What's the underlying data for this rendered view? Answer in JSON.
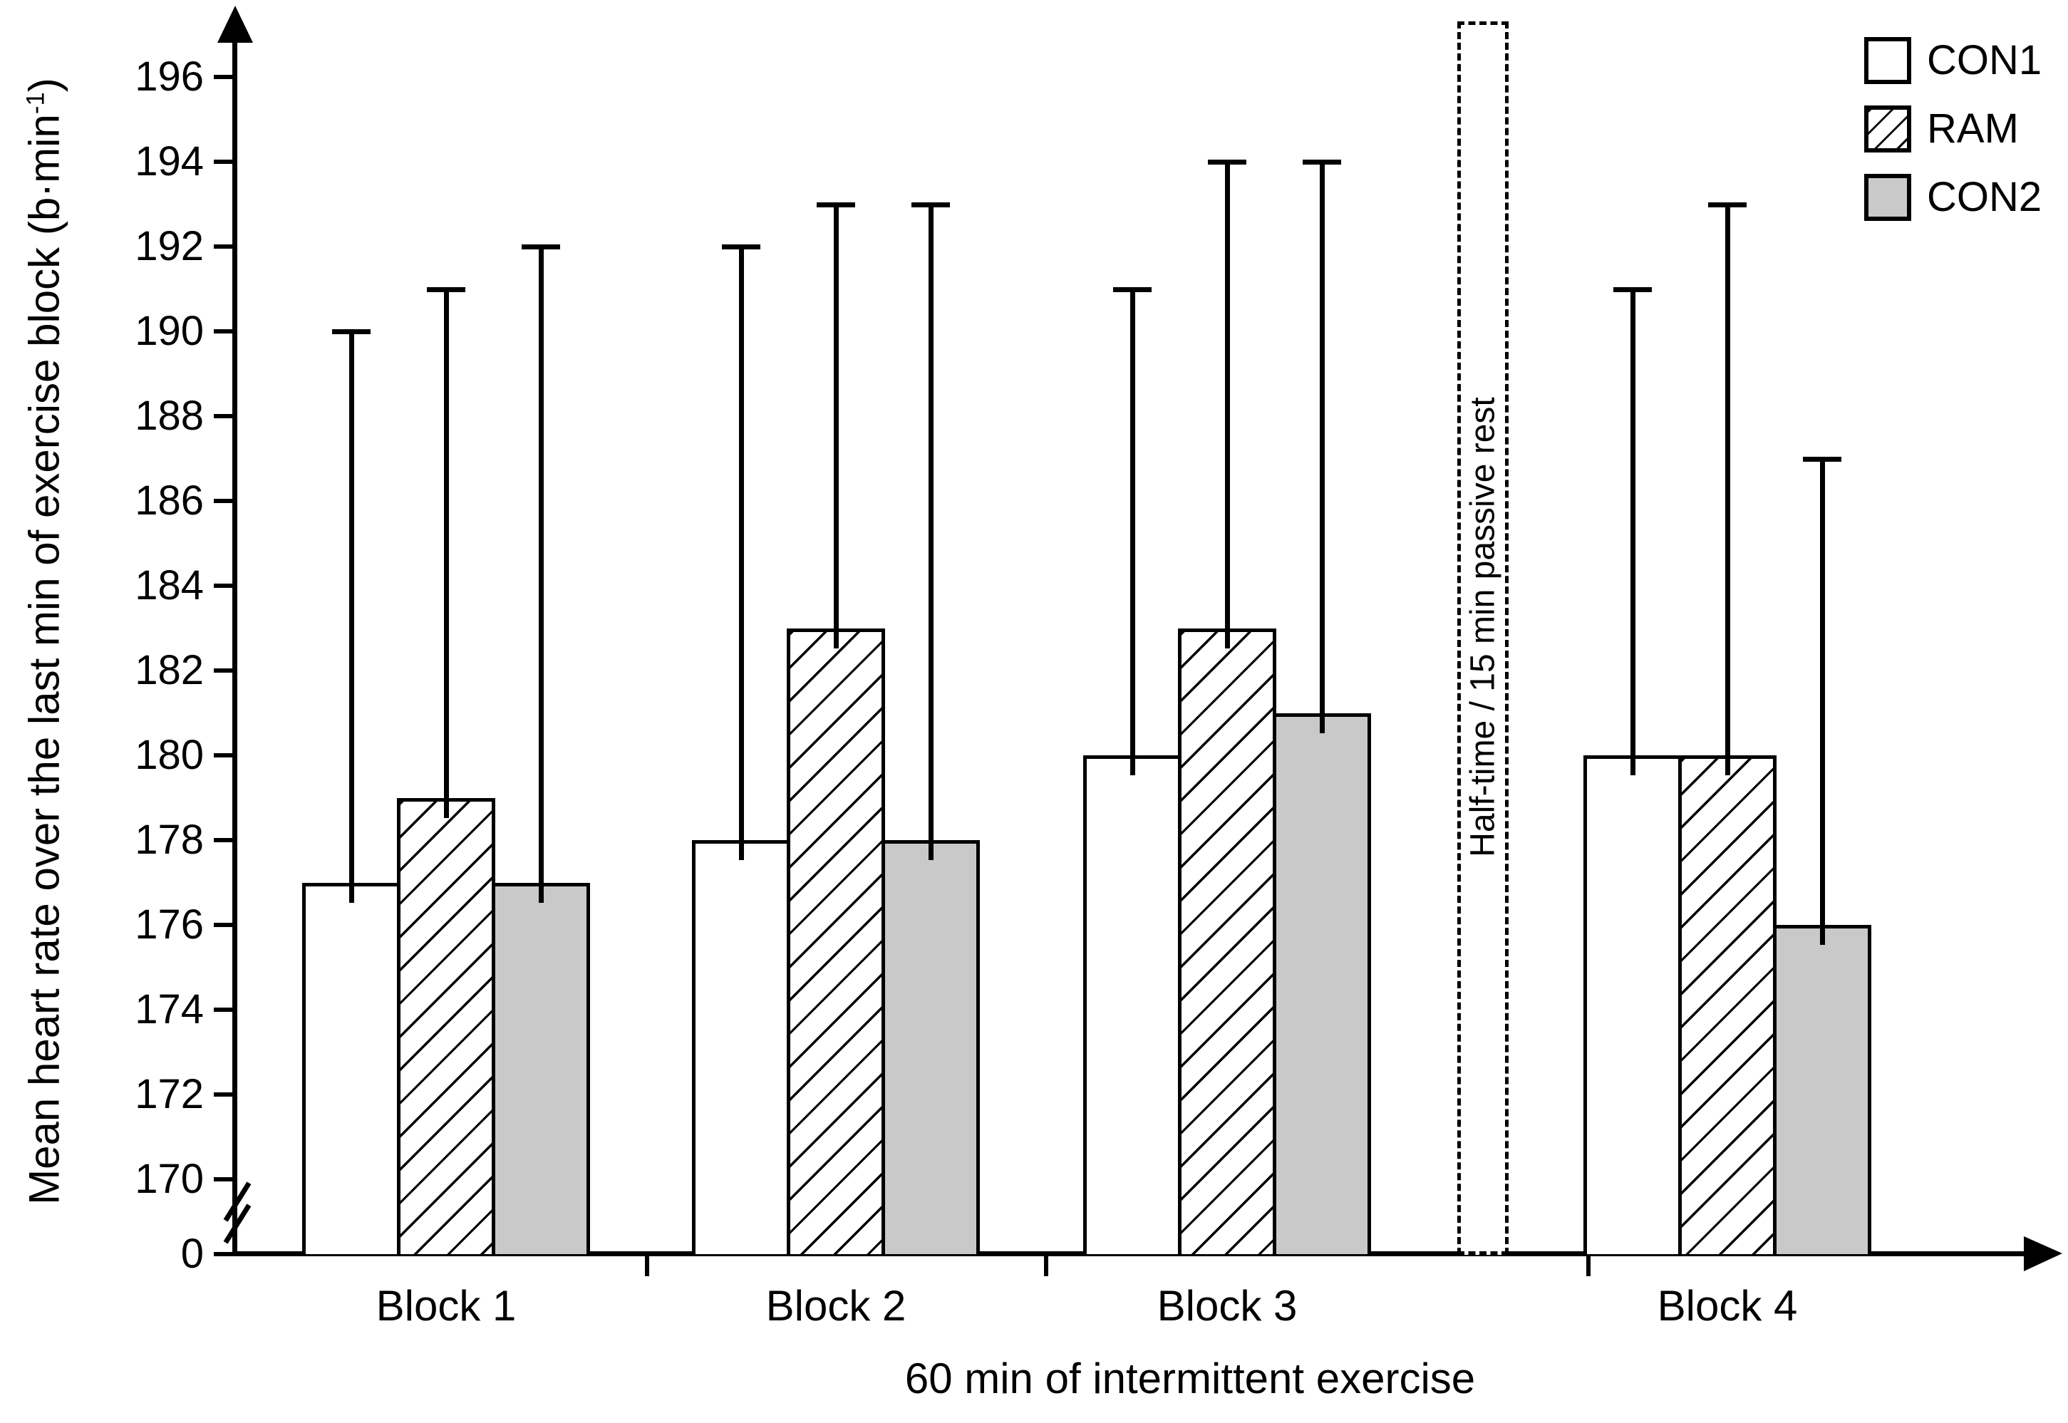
{
  "chart_data": {
    "type": "bar",
    "categories": [
      "Block 1",
      "Block 2",
      "Block 3",
      "Block 4"
    ],
    "series": [
      {
        "name": "CON1",
        "fill": "white",
        "values": [
          177,
          178,
          180,
          180
        ],
        "error_top": [
          190,
          192,
          191,
          191
        ]
      },
      {
        "name": "RAM",
        "fill": "hatch",
        "values": [
          179,
          183,
          183,
          180
        ],
        "error_top": [
          191,
          193,
          194,
          193
        ]
      },
      {
        "name": "CON2",
        "fill": "gray",
        "values": [
          177,
          178,
          181,
          176
        ],
        "error_top": [
          192,
          193,
          194,
          187
        ]
      }
    ],
    "xlabel": "60 min of intermittent exercise",
    "ylabel": "Mean heart rate over the last min of exercise block (b·min⁻¹)",
    "y_ticks": [
      170,
      172,
      174,
      176,
      178,
      180,
      182,
      184,
      186,
      188,
      190,
      192,
      194,
      196
    ],
    "y_axis_zero_label": "0",
    "y_axis_break": true,
    "ylim_displayed": [
      170,
      197
    ],
    "grid": false,
    "legend_position": "top-right",
    "annotation": "Half-time / 15 min passive rest"
  },
  "legend": {
    "items": [
      {
        "label": "CON1"
      },
      {
        "label": "RAM"
      },
      {
        "label": "CON2"
      }
    ]
  },
  "y_axis": {
    "title_main": "Mean heart rate over the last min of exercise block (b·min",
    "title_sup": "-1",
    "title_close": ")",
    "zero_label": "0"
  },
  "x_axis": {
    "title": "60 min of intermittent exercise"
  },
  "halftime": {
    "label": "Half-time / 15 min passive rest"
  },
  "colors": {
    "gray_fill": "#c9c9c9",
    "stroke": "#000000",
    "background": "#ffffff"
  }
}
